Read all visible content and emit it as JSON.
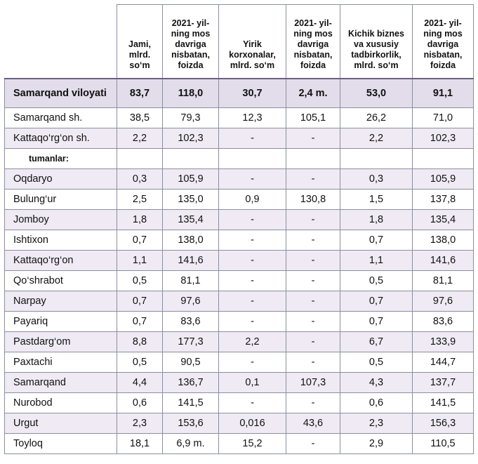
{
  "header": {
    "col0": "",
    "col1": "Jami, mlrd. so‘m",
    "col2": "2021- yil-ning mos davriga nisbatan, foizda",
    "col3": "Yirik korxonalar, mlrd. so‘m",
    "col4": "2021- yil-ning mos davriga nisbatan, foizda",
    "col5": "Kichik biznes va xususiy tadbirkorlik, mlrd. so‘m",
    "col6": "2021- yil-ning mos davriga nisbatan, foizda"
  },
  "total": {
    "name": "Samarqand viloyati",
    "c1": "83,7",
    "c2": "118,0",
    "c3": "30,7",
    "c4": "2,4  m.",
    "c5": "53,0",
    "c6": "91,1"
  },
  "rows": [
    {
      "name": "Samarqand sh.",
      "c1": "38,5",
      "c2": "79,3",
      "c3": "12,3",
      "c4": "105,1",
      "c5": "26,2",
      "c6": "71,0"
    },
    {
      "name": "Kattaqo‘rg‘on sh.",
      "c1": "2,2",
      "c2": "102,3",
      "c3": "-",
      "c4": "-",
      "c5": "2,2",
      "c6": "102,3"
    },
    {
      "name": "tumanlar:",
      "c1": "",
      "c2": "",
      "c3": "",
      "c4": "",
      "c5": "",
      "c6": ""
    },
    {
      "name": "Oqdaryo",
      "c1": "0,3",
      "c2": "105,9",
      "c3": "-",
      "c4": "-",
      "c5": "0,3",
      "c6": "105,9"
    },
    {
      "name": "Bulung‘ur",
      "c1": "2,5",
      "c2": "135,0",
      "c3": "0,9",
      "c4": "130,8",
      "c5": "1,5",
      "c6": "137,8"
    },
    {
      "name": "Jomboy",
      "c1": "1,8",
      "c2": "135,4",
      "c3": "-",
      "c4": "-",
      "c5": "1,8",
      "c6": "135,4"
    },
    {
      "name": "Ishtixon",
      "c1": "0,7",
      "c2": "138,0",
      "c3": "-",
      "c4": "-",
      "c5": "0,7",
      "c6": "138,0"
    },
    {
      "name": "Kattaqo‘rg‘on",
      "c1": "1,1",
      "c2": "141,6",
      "c3": "-",
      "c4": "-",
      "c5": "1,1",
      "c6": "141,6"
    },
    {
      "name": "Qo‘shrabot",
      "c1": "0,5",
      "c2": "81,1",
      "c3": "-",
      "c4": "-",
      "c5": "0,5",
      "c6": "81,1"
    },
    {
      "name": "Narpay",
      "c1": "0,7",
      "c2": "97,6",
      "c3": "-",
      "c4": "-",
      "c5": "0,7",
      "c6": "97,6"
    },
    {
      "name": "Payariq",
      "c1": "0,7",
      "c2": "83,6",
      "c3": "-",
      "c4": "-",
      "c5": "0,7",
      "c6": "83,6"
    },
    {
      "name": "Pastdarg‘om",
      "c1": "8,8",
      "c2": "177,3",
      "c3": "2,2",
      "c4": "-",
      "c5": "6,7",
      "c6": "133,9"
    },
    {
      "name": "Paxtachi",
      "c1": "0,5",
      "c2": "90,5",
      "c3": "-",
      "c4": "-",
      "c5": "0,5",
      "c6": "144,7"
    },
    {
      "name": "Samarqand",
      "c1": "4,4",
      "c2": "136,7",
      "c3": "0,1",
      "c4": "107,3",
      "c5": "4,3",
      "c6": "137,7"
    },
    {
      "name": "Nurobod",
      "c1": "0,6",
      "c2": "141,5",
      "c3": "-",
      "c4": "-",
      "c5": "0,6",
      "c6": "141,5"
    },
    {
      "name": "Urgut",
      "c1": "2,3",
      "c2": "153,6",
      "c3": "0,016",
      "c4": "43,6",
      "c5": "2,3",
      "c6": "156,3"
    },
    {
      "name": "Toyloq",
      "c1": "18,1",
      "c2": "6,9 m.",
      "c3": "15,2",
      "c4": "-",
      "c5": "2,9",
      "c6": "110,5"
    }
  ]
}
